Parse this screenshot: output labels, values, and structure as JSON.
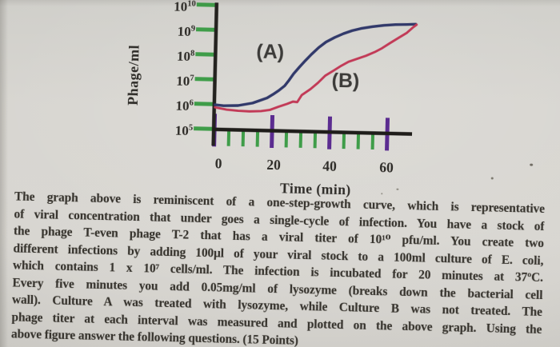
{
  "page": {
    "kind": "photographed exam question page",
    "background_color": "#d5d3ce"
  },
  "figure": {
    "y_axis_label": "Phage/ml",
    "x_axis_label": "Time (min)",
    "y_ticks": [
      {
        "base": "10",
        "exp": "10"
      },
      {
        "base": "10",
        "exp": "9"
      },
      {
        "base": "10",
        "exp": "8"
      },
      {
        "base": "10",
        "exp": "7"
      },
      {
        "base": "10",
        "exp": "6"
      },
      {
        "base": "10",
        "exp": "5"
      }
    ],
    "x_ticks": [
      "0",
      "20",
      "40",
      "60"
    ],
    "curve_a_label": "(A)",
    "curve_b_label": "(B)",
    "colors": {
      "curve_a": "#31396a",
      "curve_b": "#c23a57",
      "axis": "#1f1d1a",
      "major_tick": "#5b2c90",
      "minor_tick": "#3f9d49",
      "label_text": "#2e2c28"
    }
  },
  "chart_data": {
    "type": "line",
    "title": "",
    "xlabel": "Time (min)",
    "ylabel": "Phage/ml",
    "y_scale": "log10",
    "y_range_exponents": [
      5,
      10
    ],
    "x_range_min": [
      0,
      70
    ],
    "x_major_ticks": [
      0,
      20,
      40,
      60
    ],
    "x_minor_tick_step_min": 5,
    "grid": false,
    "legend_position": "inline labels on plot",
    "series": [
      {
        "name": "(A)",
        "color": "#31396a",
        "points_time_min_vs_phage_per_ml": [
          [
            0,
            950000
          ],
          [
            3,
            880000
          ],
          [
            8,
            930000
          ],
          [
            13,
            1200000
          ],
          [
            18,
            2000000
          ],
          [
            20,
            2800000
          ],
          [
            22,
            4100000
          ],
          [
            24,
            6400000
          ],
          [
            25.5,
            11000000
          ],
          [
            27,
            20000000
          ],
          [
            29,
            38000000
          ],
          [
            31,
            70000000
          ],
          [
            33,
            125000000
          ],
          [
            35.5,
            240000000
          ],
          [
            38,
            410000000
          ],
          [
            41,
            640000000
          ],
          [
            44,
            930000000
          ],
          [
            47,
            1250000000
          ],
          [
            50,
            1550000000
          ],
          [
            54,
            1900000000
          ],
          [
            58,
            2200000000
          ],
          [
            62,
            2400000000
          ],
          [
            66,
            2500000000
          ],
          [
            69,
            2600000000
          ]
        ]
      },
      {
        "name": "(B)",
        "color": "#c23a57",
        "points_time_min_vs_phage_per_ml": [
          [
            0,
            750000
          ],
          [
            4,
            620000
          ],
          [
            8,
            570000
          ],
          [
            12,
            550000
          ],
          [
            16,
            580000
          ],
          [
            19,
            660000
          ],
          [
            22,
            900000
          ],
          [
            25,
            1200000
          ],
          [
            27,
            1500000
          ],
          [
            28.5,
            1450000
          ],
          [
            30,
            2800000
          ],
          [
            33,
            5000000
          ],
          [
            35.5,
            9000000
          ],
          [
            38,
            18000000
          ],
          [
            41,
            30000000
          ],
          [
            43.5,
            47000000
          ],
          [
            46,
            69000000
          ],
          [
            49,
            93000000
          ],
          [
            52,
            125000000
          ],
          [
            55,
            180000000
          ],
          [
            57.5,
            260000000
          ],
          [
            60,
            410000000
          ],
          [
            63,
            690000000
          ],
          [
            66,
            1150000000
          ],
          [
            68,
            1900000000
          ],
          [
            69.3,
            2500000000
          ]
        ]
      }
    ]
  },
  "text": {
    "lines": [
      "The graph above is reminiscent of a one-step-growth curve, which is representative",
      "of viral concentration that under goes a single-cycle of infection. You have a stock of",
      "the phage T-even phage T-2 that has a viral titer of 10¹⁰ pfu/ml. You create two",
      "different infections by adding 100μl of your viral stock to a 100ml culture of E. coli,",
      "which contains 1 x 10⁷ cells/ml. The infection is incubated for 20 minutes at 37ºC.",
      "Every five minutes you add 0.05mg/ml of lysozyme (breaks down the bacterial cell",
      "wall). Culture A was treated with lysozyme, while Culture B was not treated. The",
      "phage titer at each interval was measured and plotted on the above graph. Using the",
      "above figure answer the following questions. (15 Points)"
    ]
  }
}
